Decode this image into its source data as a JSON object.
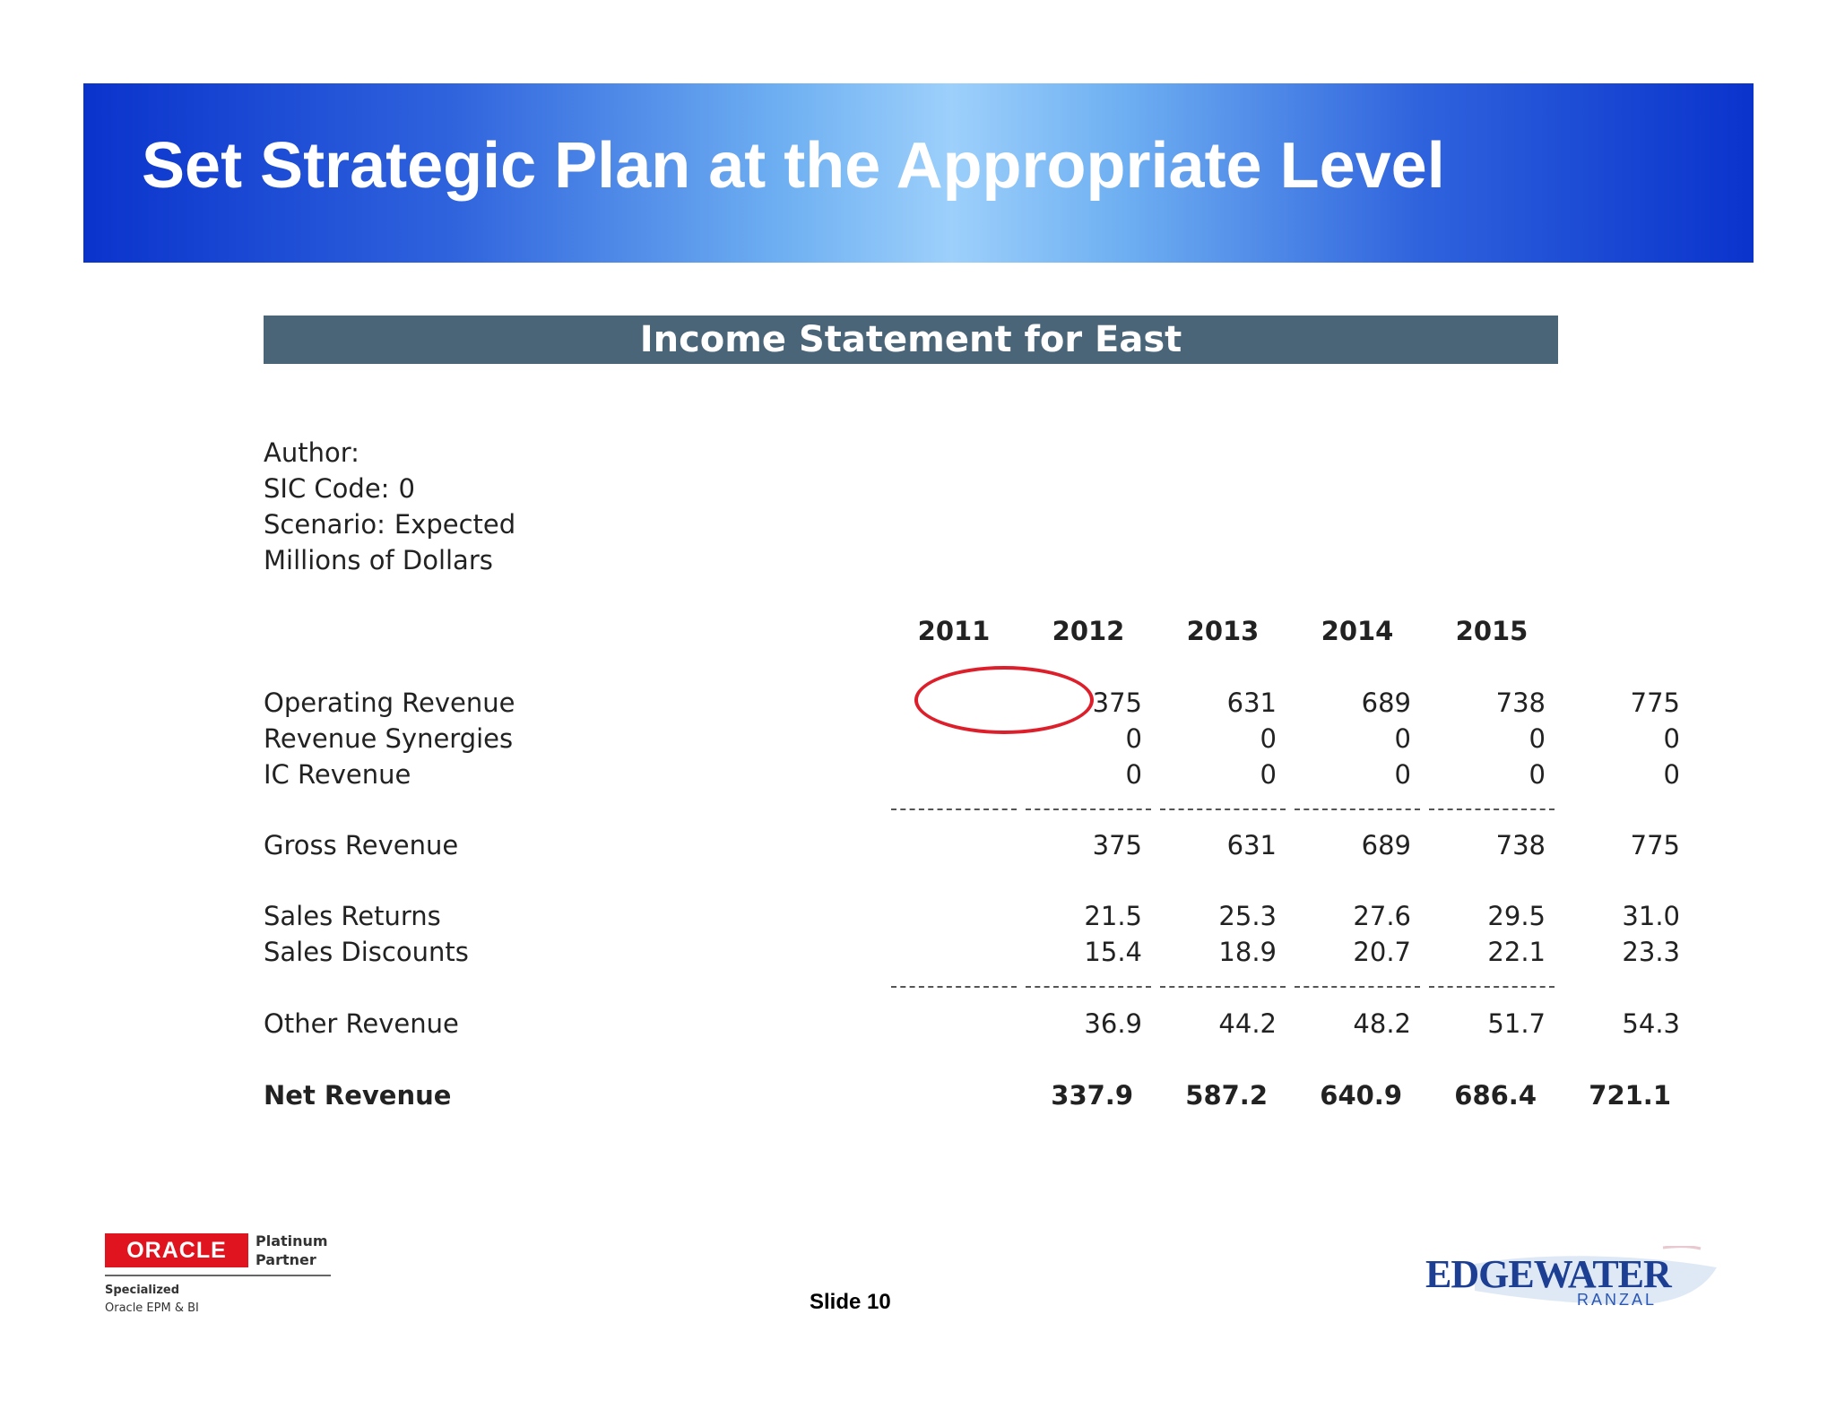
{
  "slide": {
    "title": "Set Strategic Plan at the Appropriate Level",
    "slide_number": "Slide 10"
  },
  "statement": {
    "header": "Income Statement for East",
    "meta": [
      {
        "label": "Author:",
        "value": ""
      },
      {
        "label": "SIC Code:",
        "value": "0"
      },
      {
        "label": "Scenario:",
        "value": "Expected"
      },
      {
        "label": "Millions of Dollars",
        "value": ""
      }
    ],
    "years": [
      "2011",
      "2012",
      "2013",
      "2014",
      "2015"
    ],
    "rows": {
      "operating_revenue": {
        "label": "Operating Revenue",
        "values": [
          "375",
          "631",
          "689",
          "738",
          "775"
        ]
      },
      "revenue_synergies": {
        "label": "Revenue Synergies",
        "values": [
          "0",
          "0",
          "0",
          "0",
          "0"
        ]
      },
      "ic_revenue": {
        "label": "IC Revenue",
        "values": [
          "0",
          "0",
          "0",
          "0",
          "0"
        ]
      },
      "gross_revenue": {
        "label": "Gross Revenue",
        "values": [
          "375",
          "631",
          "689",
          "738",
          "775"
        ]
      },
      "sales_returns": {
        "label": "Sales Returns",
        "values": [
          "21.5",
          "25.3",
          "27.6",
          "29.5",
          "31.0"
        ]
      },
      "sales_discounts": {
        "label": "Sales Discounts",
        "values": [
          "15.4",
          "18.9",
          "20.7",
          "22.1",
          "23.3"
        ]
      },
      "other_revenue": {
        "label": "Other Revenue",
        "values": [
          "36.9",
          "44.2",
          "48.2",
          "51.7",
          "54.3"
        ]
      },
      "net_revenue": {
        "label": "Net Revenue",
        "values": [
          "337.9",
          "587.2",
          "640.9",
          "686.4",
          "721.1"
        ]
      }
    },
    "highlight_color": "#dd1f2b"
  },
  "footer": {
    "oracle_logo": "ORACLE",
    "oracle_partner": [
      "Platinum",
      "Partner"
    ],
    "oracle_specialized": [
      "Specialized",
      "Oracle EPM & BI"
    ],
    "edgewater_name": "EDGEWATER",
    "edgewater_sub": "RANZAL"
  },
  "colors": {
    "banner_dark": "#0a33cc",
    "banner_light": "#9dd0fb",
    "statement_header": "#4a6478",
    "oracle_red": "#e0141e",
    "edgewater_blue": "#1c3f94"
  }
}
